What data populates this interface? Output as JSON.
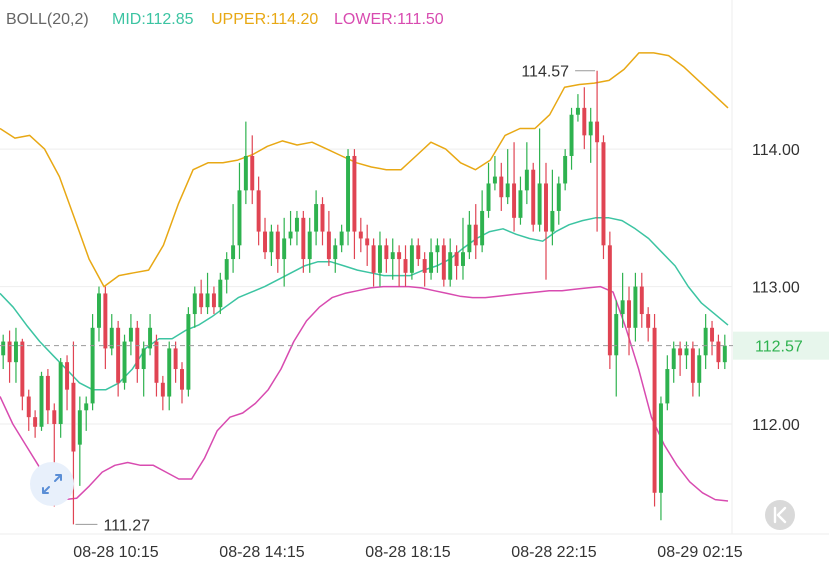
{
  "legend": {
    "indicator": "BOLL(20,2)",
    "mid_label": "MID:112.85",
    "upper_label": "UPPER:114.20",
    "lower_label": "LOWER:111.50"
  },
  "colors": {
    "up": "#2eb24f",
    "down": "#e04453",
    "mid": "#3cc4a2",
    "upper": "#e8a814",
    "lower": "#d84bb0",
    "grid": "#eeeeee",
    "axis_text": "#333333",
    "legend_title": "#666666",
    "current_price_bg": "#e7f6ec",
    "current_price_text": "#2eb24f"
  },
  "icons": {
    "expand": "expand-arrows-icon",
    "back": "back-to-start-icon"
  },
  "chart_data": {
    "type": "candlestick",
    "y_ticks": [
      "114.00",
      "113.00",
      "112.00"
    ],
    "y_tick_values": [
      114.0,
      113.0,
      112.0
    ],
    "x_ticks": [
      "08-28 10:15",
      "08-28 14:15",
      "08-28 18:15",
      "08-28 22:15",
      "08-29 02:15"
    ],
    "ylim": [
      111.2,
      114.75
    ],
    "current_price": 112.57,
    "current_price_label": "112.57",
    "high_marker": {
      "label": "114.57",
      "value": 114.57
    },
    "low_marker": {
      "label": "111.27",
      "value": 111.27
    },
    "grid": true,
    "candles": [
      [
        112.5,
        112.6,
        112.65,
        112.4
      ],
      [
        112.6,
        112.45,
        112.68,
        112.3
      ],
      [
        112.45,
        112.6,
        112.7,
        112.3
      ],
      [
        112.6,
        112.2,
        112.62,
        112.1
      ],
      [
        112.2,
        112.05,
        112.25,
        111.95
      ],
      [
        112.05,
        111.98,
        112.1,
        111.9
      ],
      [
        111.98,
        112.35,
        112.38,
        111.95
      ],
      [
        112.35,
        112.1,
        112.4,
        112.0
      ],
      [
        112.1,
        112.0,
        112.15,
        111.4
      ],
      [
        112.0,
        112.45,
        112.48,
        111.9
      ],
      [
        112.45,
        112.25,
        112.5,
        112.1
      ],
      [
        112.3,
        111.8,
        112.6,
        111.27
      ],
      [
        111.85,
        112.1,
        112.2,
        111.55
      ],
      [
        112.1,
        112.15,
        112.2,
        111.95
      ],
      [
        112.15,
        112.7,
        112.8,
        112.1
      ],
      [
        112.7,
        112.95,
        113.0,
        112.6
      ],
      [
        112.95,
        112.55,
        113.0,
        112.4
      ],
      [
        112.55,
        112.7,
        112.8,
        112.5
      ],
      [
        112.7,
        112.3,
        112.75,
        112.2
      ],
      [
        112.3,
        112.6,
        112.65,
        112.25
      ],
      [
        112.6,
        112.7,
        112.8,
        112.5
      ],
      [
        112.7,
        112.4,
        112.75,
        112.3
      ],
      [
        112.4,
        112.55,
        112.6,
        112.2
      ],
      [
        112.55,
        112.7,
        112.8,
        112.5
      ],
      [
        112.6,
        112.3,
        112.65,
        112.2
      ],
      [
        112.3,
        112.2,
        112.35,
        112.1
      ],
      [
        112.2,
        112.55,
        112.6,
        112.1
      ],
      [
        112.55,
        112.4,
        112.6,
        112.3
      ],
      [
        112.4,
        112.25,
        112.45,
        112.15
      ],
      [
        112.25,
        112.8,
        112.85,
        112.2
      ],
      [
        112.8,
        112.95,
        113.0,
        112.7
      ],
      [
        112.95,
        112.85,
        113.05,
        112.8
      ],
      [
        112.85,
        112.95,
        113.1,
        112.8
      ],
      [
        112.95,
        112.85,
        113.0,
        112.8
      ],
      [
        112.85,
        113.05,
        113.1,
        112.8
      ],
      [
        113.05,
        113.2,
        113.25,
        112.95
      ],
      [
        113.2,
        113.3,
        113.6,
        113.1
      ],
      [
        113.3,
        113.7,
        113.9,
        113.2
      ],
      [
        113.7,
        113.95,
        114.2,
        113.6
      ],
      [
        113.95,
        113.7,
        114.1,
        113.6
      ],
      [
        113.7,
        113.4,
        113.8,
        113.3
      ],
      [
        113.4,
        113.25,
        113.5,
        113.2
      ],
      [
        113.25,
        113.4,
        113.45,
        113.15
      ],
      [
        113.4,
        113.2,
        113.45,
        113.1
      ],
      [
        113.2,
        113.35,
        113.5,
        113.0
      ],
      [
        113.35,
        113.4,
        113.55,
        113.3
      ],
      [
        113.4,
        113.5,
        113.55,
        113.3
      ],
      [
        113.5,
        113.2,
        113.55,
        113.1
      ],
      [
        113.2,
        113.4,
        113.5,
        113.1
      ],
      [
        113.4,
        113.6,
        113.7,
        113.3
      ],
      [
        113.6,
        113.4,
        113.65,
        113.3
      ],
      [
        113.4,
        113.2,
        113.55,
        113.15
      ],
      [
        113.2,
        113.3,
        113.35,
        113.1
      ],
      [
        113.3,
        113.4,
        113.45,
        113.25
      ],
      [
        113.4,
        113.95,
        114.0,
        113.3
      ],
      [
        113.95,
        113.4,
        114.0,
        113.2
      ],
      [
        113.4,
        113.35,
        113.5,
        113.25
      ],
      [
        113.35,
        113.3,
        113.45,
        113.15
      ],
      [
        113.3,
        113.1,
        113.35,
        113.0
      ],
      [
        113.1,
        113.3,
        113.4,
        113.0
      ],
      [
        113.3,
        113.2,
        113.35,
        113.1
      ],
      [
        113.2,
        113.25,
        113.35,
        113.05
      ],
      [
        113.25,
        113.2,
        113.3,
        113.0
      ],
      [
        113.2,
        113.1,
        113.3,
        113.0
      ],
      [
        113.1,
        113.3,
        113.35,
        113.05
      ],
      [
        113.3,
        113.2,
        113.35,
        113.15
      ],
      [
        113.2,
        113.1,
        113.25,
        113.0
      ],
      [
        113.1,
        113.25,
        113.35,
        113.05
      ],
      [
        113.25,
        113.3,
        113.35,
        113.1
      ],
      [
        113.3,
        113.05,
        113.35,
        113.0
      ],
      [
        113.05,
        113.25,
        113.35,
        113.0
      ],
      [
        113.25,
        113.15,
        113.3,
        113.05
      ],
      [
        113.15,
        113.25,
        113.5,
        113.05
      ],
      [
        113.25,
        113.45,
        113.55,
        113.2
      ],
      [
        113.45,
        113.3,
        113.6,
        113.2
      ],
      [
        113.3,
        113.55,
        113.7,
        113.25
      ],
      [
        113.55,
        113.75,
        113.9,
        113.5
      ],
      [
        113.75,
        113.8,
        113.95,
        113.7
      ],
      [
        113.8,
        113.65,
        113.9,
        113.55
      ],
      [
        113.65,
        113.75,
        114.0,
        113.6
      ],
      [
        113.75,
        113.5,
        114.05,
        113.4
      ],
      [
        113.5,
        113.7,
        113.8,
        113.45
      ],
      [
        113.7,
        113.85,
        114.05,
        113.6
      ],
      [
        113.85,
        113.45,
        113.9,
        113.4
      ],
      [
        113.45,
        113.75,
        114.15,
        113.4
      ],
      [
        113.75,
        113.4,
        113.9,
        113.05
      ],
      [
        113.4,
        113.55,
        113.85,
        113.3
      ],
      [
        113.55,
        113.75,
        113.8,
        113.45
      ],
      [
        113.75,
        113.95,
        114.0,
        113.7
      ],
      [
        113.95,
        114.25,
        114.3,
        113.85
      ],
      [
        114.25,
        114.3,
        114.4,
        114.2
      ],
      [
        114.3,
        114.1,
        114.45,
        114.0
      ],
      [
        114.1,
        114.2,
        114.3,
        113.9
      ],
      [
        114.2,
        114.05,
        114.57,
        113.4
      ],
      [
        114.05,
        113.3,
        114.1,
        113.2
      ],
      [
        113.3,
        112.5,
        113.4,
        112.4
      ],
      [
        112.5,
        112.8,
        112.9,
        112.2
      ],
      [
        112.8,
        112.9,
        113.1,
        112.7
      ],
      [
        112.9,
        112.7,
        113.0,
        112.5
      ],
      [
        112.7,
        113.0,
        113.1,
        112.6
      ],
      [
        113.0,
        112.8,
        113.1,
        112.7
      ],
      [
        112.8,
        112.7,
        112.85,
        112.6
      ],
      [
        112.7,
        111.5,
        112.8,
        111.4
      ],
      [
        111.5,
        112.15,
        112.2,
        111.3
      ],
      [
        112.15,
        112.4,
        112.5,
        112.1
      ],
      [
        112.4,
        112.55,
        112.6,
        112.3
      ],
      [
        112.55,
        112.5,
        112.6,
        112.35
      ],
      [
        112.5,
        112.55,
        112.6,
        112.4
      ],
      [
        112.55,
        112.3,
        112.6,
        112.2
      ],
      [
        112.3,
        112.5,
        112.55,
        112.2
      ],
      [
        112.5,
        112.7,
        112.8,
        112.4
      ],
      [
        112.7,
        112.6,
        112.75,
        112.5
      ],
      [
        112.6,
        112.45,
        112.65,
        112.4
      ],
      [
        112.45,
        112.57,
        112.65,
        112.4
      ]
    ],
    "mid_series": [
      112.95,
      112.85,
      112.72,
      112.6,
      112.5,
      112.4,
      112.3,
      112.25,
      112.25,
      112.3,
      112.4,
      112.55,
      112.62,
      112.62,
      112.68,
      112.72,
      112.78,
      112.85,
      112.92,
      112.96,
      113.0,
      113.05,
      113.1,
      113.15,
      113.18,
      113.18,
      113.15,
      113.12,
      113.1,
      113.08,
      113.08,
      113.08,
      113.12,
      113.15,
      113.2,
      113.28,
      113.35,
      113.4,
      113.42,
      113.38,
      113.35,
      113.33,
      113.4,
      113.45,
      113.48,
      113.5,
      113.5,
      113.48,
      113.42,
      113.35,
      113.25,
      113.15,
      113.0,
      112.88,
      112.8,
      112.72
    ],
    "upper_series": [
      114.15,
      114.08,
      114.1,
      114.0,
      113.8,
      113.5,
      113.2,
      113.0,
      113.08,
      113.1,
      113.12,
      113.3,
      113.6,
      113.85,
      113.9,
      113.9,
      113.92,
      113.96,
      114.02,
      114.06,
      114.03,
      114.05,
      114.0,
      113.95,
      113.9,
      113.87,
      113.85,
      113.85,
      113.95,
      114.05,
      114.0,
      113.9,
      113.85,
      113.92,
      114.1,
      114.15,
      114.15,
      114.25,
      114.45,
      114.47,
      114.48,
      114.5,
      114.58,
      114.7,
      114.7,
      114.68,
      114.6,
      114.5,
      114.4,
      114.3
    ],
    "lower_series": [
      112.2,
      112.0,
      111.85,
      111.7,
      111.5,
      111.45,
      111.46,
      111.55,
      111.65,
      111.7,
      111.72,
      111.7,
      111.7,
      111.65,
      111.6,
      111.6,
      111.75,
      111.95,
      112.05,
      112.08,
      112.15,
      112.25,
      112.4,
      112.6,
      112.75,
      112.85,
      112.92,
      112.95,
      112.97,
      112.99,
      113.0,
      113.0,
      113.0,
      112.99,
      112.97,
      112.95,
      112.93,
      112.92,
      112.92,
      112.93,
      112.94,
      112.95,
      112.96,
      112.97,
      112.97,
      112.98,
      112.99,
      113.0,
      112.96,
      112.7,
      112.4,
      112.05,
      111.85,
      111.7,
      111.58,
      111.5,
      111.45,
      111.44
    ]
  }
}
